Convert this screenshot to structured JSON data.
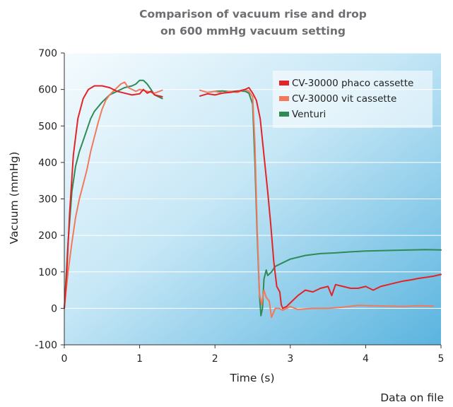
{
  "chart_data": {
    "type": "line",
    "title_line1": "Comparison of vacuum rise and drop",
    "title_line2": "on 600 mmHg vacuum setting",
    "xlabel": "Time (s)",
    "ylabel": "Vacuum (mmHg)",
    "xlim": [
      0,
      5
    ],
    "ylim": [
      -100,
      700
    ],
    "x_ticks": [
      "0",
      "1",
      "2",
      "3",
      "4",
      "5"
    ],
    "y_ticks": [
      "-100",
      "0",
      "100",
      "200",
      "300",
      "400",
      "500",
      "600",
      "700"
    ],
    "grid": "horizontal",
    "legend_position": "top-right",
    "note": "Data on file",
    "series": [
      {
        "name": "CV-30000 phaco cassette",
        "color": "#e32326",
        "segments": [
          [
            [
              0,
              0
            ],
            [
              0.03,
              90
            ],
            [
              0.07,
              260
            ],
            [
              0.12,
              420
            ],
            [
              0.18,
              520
            ],
            [
              0.25,
              575
            ],
            [
              0.32,
              600
            ],
            [
              0.4,
              610
            ],
            [
              0.5,
              610
            ],
            [
              0.6,
              605
            ],
            [
              0.7,
              595
            ],
            [
              0.8,
              590
            ],
            [
              0.9,
              585
            ],
            [
              1.0,
              588
            ],
            [
              1.05,
              600
            ],
            [
              1.1,
              590
            ],
            [
              1.15,
              595
            ],
            [
              1.2,
              585
            ],
            [
              1.3,
              580
            ]
          ],
          [
            [
              1.8,
              582
            ],
            [
              1.9,
              588
            ],
            [
              2.0,
              585
            ],
            [
              2.1,
              590
            ],
            [
              2.2,
              592
            ],
            [
              2.3,
              595
            ],
            [
              2.4,
              600
            ],
            [
              2.45,
              605
            ],
            [
              2.5,
              590
            ],
            [
              2.55,
              570
            ],
            [
              2.6,
              520
            ],
            [
              2.65,
              420
            ],
            [
              2.7,
              320
            ],
            [
              2.74,
              230
            ],
            [
              2.78,
              130
            ],
            [
              2.82,
              60
            ],
            [
              2.86,
              45
            ],
            [
              2.88,
              10
            ],
            [
              2.9,
              0
            ],
            [
              2.95,
              5
            ],
            [
              3.0,
              15
            ],
            [
              3.1,
              35
            ],
            [
              3.2,
              50
            ],
            [
              3.3,
              45
            ],
            [
              3.4,
              55
            ],
            [
              3.5,
              60
            ],
            [
              3.55,
              35
            ],
            [
              3.6,
              65
            ],
            [
              3.7,
              60
            ],
            [
              3.8,
              55
            ],
            [
              3.9,
              55
            ],
            [
              4.0,
              60
            ],
            [
              4.1,
              50
            ],
            [
              4.2,
              60
            ],
            [
              4.3,
              65
            ],
            [
              4.4,
              70
            ],
            [
              4.5,
              75
            ],
            [
              4.6,
              78
            ],
            [
              4.7,
              82
            ],
            [
              4.8,
              85
            ],
            [
              4.9,
              88
            ],
            [
              5.0,
              93
            ]
          ]
        ]
      },
      {
        "name": "CV-30000 vit cassette",
        "color": "#f2795b",
        "segments": [
          [
            [
              0,
              0
            ],
            [
              0.05,
              100
            ],
            [
              0.1,
              180
            ],
            [
              0.15,
              250
            ],
            [
              0.2,
              300
            ],
            [
              0.25,
              340
            ],
            [
              0.3,
              380
            ],
            [
              0.35,
              430
            ],
            [
              0.4,
              470
            ],
            [
              0.45,
              510
            ],
            [
              0.5,
              545
            ],
            [
              0.55,
              570
            ],
            [
              0.6,
              585
            ],
            [
              0.7,
              605
            ],
            [
              0.75,
              615
            ],
            [
              0.8,
              620
            ],
            [
              0.85,
              605
            ],
            [
              0.9,
              600
            ],
            [
              0.95,
              595
            ],
            [
              1.0,
              600
            ],
            [
              1.1,
              595
            ],
            [
              1.2,
              590
            ],
            [
              1.3,
              598
            ]
          ],
          [
            [
              1.8,
              598
            ],
            [
              1.9,
              592
            ],
            [
              2.0,
              595
            ],
            [
              2.1,
              590
            ],
            [
              2.2,
              595
            ],
            [
              2.3,
              592
            ],
            [
              2.4,
              600
            ],
            [
              2.45,
              595
            ],
            [
              2.5,
              580
            ],
            [
              2.53,
              450
            ],
            [
              2.56,
              220
            ],
            [
              2.59,
              40
            ],
            [
              2.62,
              10
            ],
            [
              2.65,
              50
            ],
            [
              2.68,
              30
            ],
            [
              2.72,
              20
            ],
            [
              2.75,
              -25
            ],
            [
              2.8,
              0
            ],
            [
              2.85,
              0
            ],
            [
              2.9,
              -5
            ],
            [
              3.0,
              5
            ],
            [
              3.1,
              -3
            ],
            [
              3.3,
              0
            ],
            [
              3.5,
              0
            ],
            [
              3.7,
              3
            ],
            [
              3.9,
              8
            ],
            [
              4.1,
              7
            ],
            [
              4.3,
              6
            ],
            [
              4.5,
              5
            ],
            [
              4.7,
              7
            ],
            [
              4.9,
              6
            ]
          ]
        ]
      },
      {
        "name": "Venturi",
        "color": "#2e8b57",
        "segments": [
          [
            [
              0,
              0
            ],
            [
              0.05,
              180
            ],
            [
              0.1,
              320
            ],
            [
              0.15,
              390
            ],
            [
              0.2,
              430
            ],
            [
              0.25,
              460
            ],
            [
              0.3,
              490
            ],
            [
              0.35,
              520
            ],
            [
              0.4,
              540
            ],
            [
              0.5,
              565
            ],
            [
              0.6,
              585
            ],
            [
              0.7,
              595
            ],
            [
              0.8,
              605
            ],
            [
              0.9,
              610
            ],
            [
              0.95,
              615
            ],
            [
              1.0,
              625
            ],
            [
              1.05,
              625
            ],
            [
              1.1,
              615
            ],
            [
              1.15,
              600
            ],
            [
              1.2,
              585
            ],
            [
              1.3,
              575
            ]
          ],
          [
            [
              2.0,
              595
            ],
            [
              2.1,
              596
            ],
            [
              2.2,
              594
            ],
            [
              2.3,
              596
            ],
            [
              2.4,
              595
            ],
            [
              2.45,
              590
            ],
            [
              2.5,
              560
            ],
            [
              2.53,
              400
            ],
            [
              2.56,
              200
            ],
            [
              2.59,
              40
            ],
            [
              2.61,
              -20
            ],
            [
              2.63,
              0
            ],
            [
              2.65,
              80
            ],
            [
              2.68,
              105
            ],
            [
              2.7,
              90
            ],
            [
              2.75,
              100
            ],
            [
              2.8,
              115
            ],
            [
              2.9,
              125
            ],
            [
              3.0,
              135
            ],
            [
              3.1,
              140
            ],
            [
              3.2,
              145
            ],
            [
              3.4,
              150
            ],
            [
              3.6,
              152
            ],
            [
              3.8,
              155
            ],
            [
              4.0,
              157
            ],
            [
              4.2,
              158
            ],
            [
              4.4,
              159
            ],
            [
              4.6,
              160
            ],
            [
              4.8,
              161
            ],
            [
              5.0,
              160
            ]
          ]
        ]
      }
    ]
  }
}
